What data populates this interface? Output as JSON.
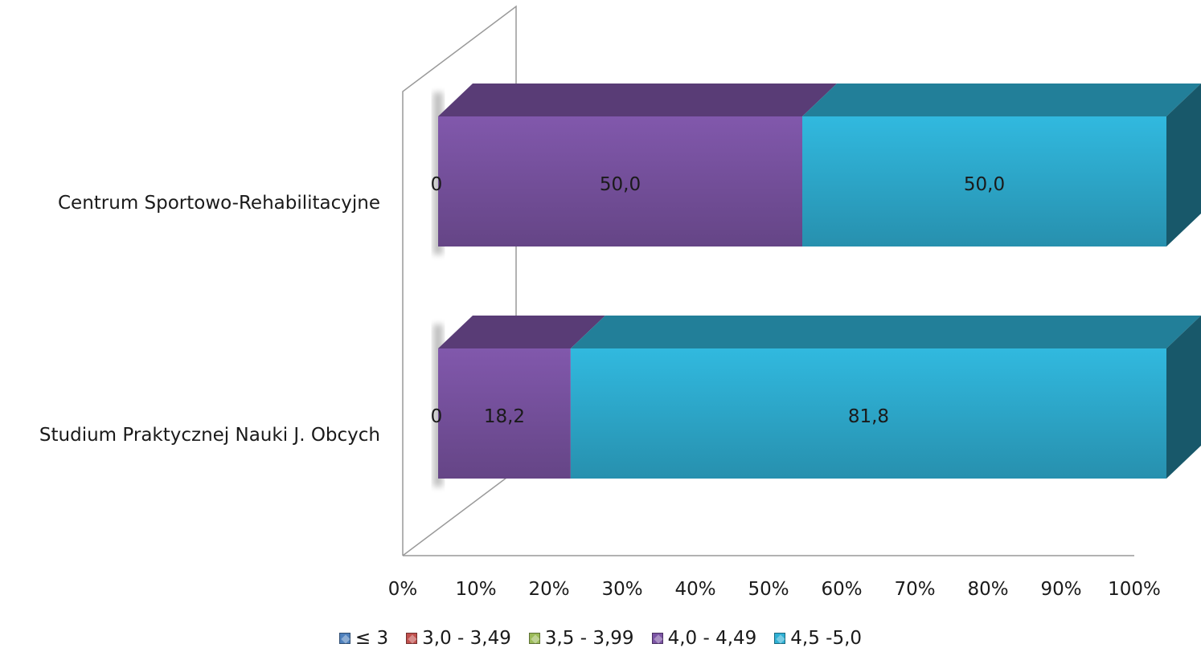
{
  "chart_data": {
    "type": "bar",
    "orientation": "horizontal",
    "stacked": "percent",
    "categories": [
      "Centrum Sportowo-Rehabilitacyjne",
      "Studium Praktycznej Nauki J. Obcych"
    ],
    "series": [
      {
        "name": "≤ 3",
        "values": [
          0,
          0
        ],
        "color": "#4f81bd"
      },
      {
        "name": "3,0 - 3,49",
        "values": [
          0,
          0
        ],
        "color": "#c0504d"
      },
      {
        "name": "3,5 - 3,99",
        "values": [
          0,
          0
        ],
        "color": "#9bbb59"
      },
      {
        "name": "4,0 - 4,49",
        "values": [
          50.0,
          18.2
        ],
        "color": "#7b54a4"
      },
      {
        "name": "4,5 -5,0",
        "values": [
          50.0,
          81.8
        ],
        "color": "#2fb0d4"
      }
    ],
    "data_labels": [
      [
        "0",
        "50,0",
        "50,0"
      ],
      [
        "0",
        "18,2",
        "81,8"
      ]
    ],
    "x_ticks": [
      "0%",
      "10%",
      "20%",
      "30%",
      "40%",
      "50%",
      "60%",
      "70%",
      "80%",
      "90%",
      "100%"
    ],
    "xlim": [
      0,
      100
    ],
    "grid": false,
    "legend_position": "bottom",
    "title": "",
    "xlabel": "",
    "ylabel": ""
  }
}
